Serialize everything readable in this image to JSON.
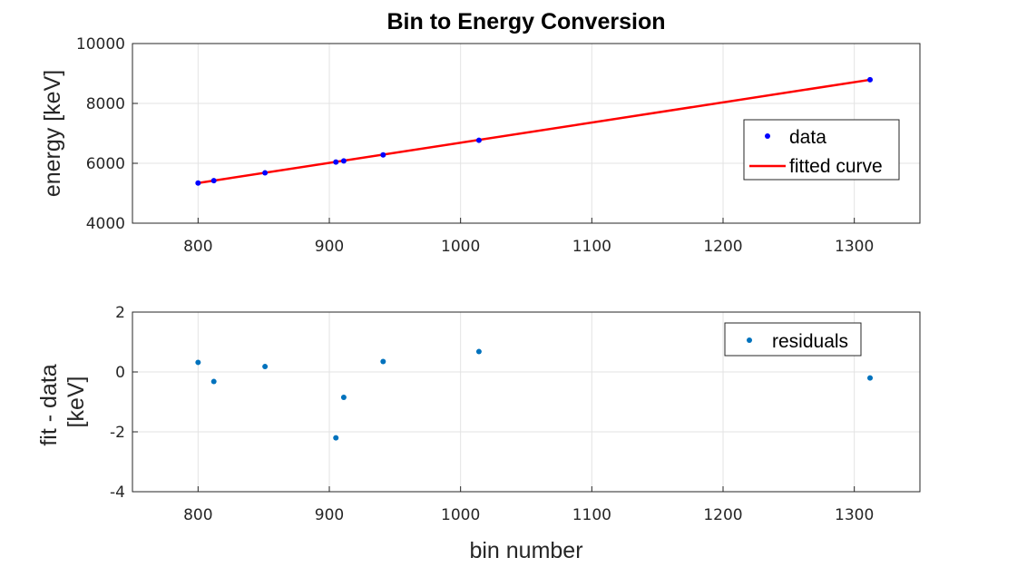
{
  "chart_data": [
    {
      "type": "scatter",
      "title": "Bin to Energy Conversion",
      "xlabel": "",
      "ylabel": "energy [keV]",
      "xlim": [
        750,
        1350
      ],
      "ylim": [
        4000,
        10000
      ],
      "xticks": [
        800,
        900,
        1000,
        1100,
        1200,
        1300
      ],
      "yticks": [
        4000,
        6000,
        8000,
        10000
      ],
      "grid": true,
      "legend_position": "right",
      "series": [
        {
          "name": "data",
          "type": "scatter",
          "color": "#0000ff",
          "x": [
            800,
            812,
            851,
            905,
            911,
            941,
            1014,
            1312
          ],
          "y": [
            5340,
            5420,
            5680,
            6040,
            6080,
            6280,
            6770,
            8790
          ]
        },
        {
          "name": "fitted curve",
          "type": "line",
          "color": "#ff0000",
          "x": [
            800,
            1312
          ],
          "y": [
            5340,
            8790
          ]
        }
      ]
    },
    {
      "type": "scatter",
      "title": "",
      "xlabel": "bin number",
      "ylabel": [
        "fit - data",
        "[keV]"
      ],
      "xlim": [
        750,
        1350
      ],
      "ylim": [
        -4,
        2
      ],
      "xticks": [
        800,
        900,
        1000,
        1100,
        1200,
        1300
      ],
      "yticks": [
        -4,
        -2,
        0,
        2
      ],
      "grid": true,
      "legend_position": "top-right",
      "series": [
        {
          "name": "residuals",
          "type": "scatter",
          "color": "#0072bd",
          "x": [
            800,
            812,
            851,
            905,
            911,
            941,
            1014,
            1312
          ],
          "y": [
            0.32,
            -0.32,
            0.18,
            -2.2,
            -0.85,
            0.35,
            0.68,
            -0.2
          ]
        }
      ]
    }
  ]
}
